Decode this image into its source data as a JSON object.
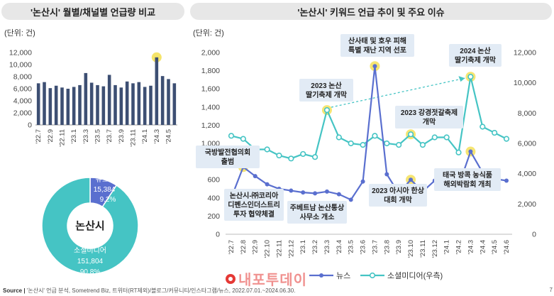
{
  "header_left": "'논산시' 월별/채널별 언급량 비교",
  "header_right": "'논산시' 키워드 언급 추이 및 주요 이슈",
  "unit_left": "(단위: 건)",
  "unit_right": "(단위: 건)",
  "source": "Source |",
  "source_text": "'논산시' 언급 분석, Sometrend Biz, 트위터(RT제외)/블로그/커뮤니티/인스타그램/뉴스, 2022.07.01.~2024.06.30.",
  "watermark": "내포투데이",
  "page_number": "7",
  "colors": {
    "bar": "#3d4f73",
    "news": "#5a6fcf",
    "social": "#45c4c4",
    "highlight": "#f4e15a",
    "annot_bg": "#e2ebf5",
    "annot_text": "#222"
  },
  "chart_data": [
    {
      "type": "bar",
      "categories": [
        "'22.7",
        "'22.8",
        "'22.9",
        "'22.10",
        "'22.11",
        "'22.12",
        "'23.1",
        "'23.2",
        "'23.3",
        "'23.4",
        "'23.5",
        "'23.6",
        "'23.7",
        "'23.8",
        "'23.9",
        "'23.10",
        "'23.11",
        "'23.12",
        "'24.1",
        "'24.2",
        "'24.3",
        "'24.4",
        "'24.5",
        "'24.6"
      ],
      "tick_labels": [
        "'22.7",
        "'22.9",
        "'22.11",
        "'23.1",
        "'23.3",
        "'23.5",
        "'23.7",
        "'23.9",
        "'23.11",
        "'24.1",
        "'24.3",
        "'24.5"
      ],
      "values": [
        6900,
        7100,
        6100,
        6500,
        6200,
        6000,
        6300,
        6600,
        8600,
        7000,
        6600,
        6400,
        8300,
        6600,
        6200,
        7200,
        6900,
        7100,
        6300,
        6500,
        11200,
        8100,
        7600,
        6900
      ],
      "highlight_index": 20,
      "ylim": [
        0,
        12000
      ],
      "yticks": [
        0,
        2000,
        4000,
        6000,
        8000,
        10000,
        12000
      ],
      "ytick_labels": [
        "0",
        "2,000",
        "4,000",
        "6,000",
        "8,000",
        "10,000",
        "12,000"
      ]
    },
    {
      "type": "pie",
      "center_label": "논산시",
      "slices": [
        {
          "name": "뉴스",
          "value": 15384,
          "value_label": "15,384",
          "percent": "9.2%",
          "color": "#5a6fcf"
        },
        {
          "name": "소셜미디어",
          "value": 151804,
          "value_label": "151,804",
          "percent": "90.8%",
          "color": "#45c4c4"
        }
      ]
    },
    {
      "type": "line",
      "x": [
        "'22.7",
        "'22.8",
        "'22.9",
        "'22.10",
        "'22.11",
        "'22.12",
        "'23.1",
        "'23.2",
        "'23.3",
        "'23.4",
        "'23.5",
        "'23.6",
        "'23.7",
        "'23.8",
        "'23.9",
        "'23.10",
        "'23.11",
        "'23.12",
        "'24.1",
        "'24.2",
        "'24.3",
        "'24.4",
        "'24.5",
        "'24.6"
      ],
      "series": [
        {
          "name": "뉴스",
          "axis": "left",
          "values": [
            400,
            740,
            640,
            550,
            500,
            480,
            460,
            450,
            470,
            440,
            380,
            580,
            1850,
            660,
            450,
            600,
            470,
            590,
            570,
            530,
            910,
            680,
            610,
            590
          ]
        },
        {
          "name": "소셜미디어(우측)",
          "axis": "right",
          "values": [
            6500,
            6300,
            5600,
            5600,
            5200,
            5000,
            5300,
            5100,
            8200,
            6400,
            6000,
            5900,
            6500,
            6000,
            5900,
            6600,
            5900,
            6400,
            6400,
            5400,
            10400,
            7100,
            6700,
            6300
          ]
        }
      ],
      "highlight_points": [
        [
          1,
          "news"
        ],
        [
          8,
          "social"
        ],
        [
          12,
          "news"
        ],
        [
          15,
          "social"
        ],
        [
          15,
          "news"
        ],
        [
          20,
          "social"
        ],
        [
          20,
          "news"
        ]
      ],
      "ylim_left": [
        0,
        2000
      ],
      "yticks_left": [
        0,
        200,
        400,
        600,
        800,
        1000,
        1200,
        1400,
        1600,
        1800,
        2000
      ],
      "ytick_labels_left": [
        "0",
        "200",
        "400",
        "600",
        "800",
        "1,000",
        "1,200",
        "1,400",
        "1,600",
        "1,800",
        "2,000"
      ],
      "ylim_right": [
        0,
        12000
      ],
      "yticks_right": [
        0,
        2000,
        4000,
        6000,
        8000,
        10000,
        12000
      ],
      "ytick_labels_right": [
        "0",
        "2,000",
        "4,000",
        "6,000",
        "8,000",
        "10,000",
        "12,000"
      ],
      "legend": [
        "뉴스",
        "소셜미디어(우측)"
      ],
      "annotations": [
        {
          "text": "국방발전협의회 출범",
          "lines": [
            "국방발전협의회",
            "출범"
          ]
        },
        {
          "text": "논산시-㈜코리아 디펜스인더스트리 투자 협약체결",
          "lines": [
            "논산시-㈜코리아",
            "디펜스인더스트리",
            "투자 협약체결"
          ]
        },
        {
          "text": "2023 논산 딸기축제 개막",
          "lines": [
            "2023 논산",
            "딸기축제 개막"
          ]
        },
        {
          "text": "주베트남 논산통상 사무소 개소",
          "lines": [
            "주베트남 논산통상",
            "사무소 개소"
          ]
        },
        {
          "text": "산사태 및 호우 피해 특별 재난 지역 선포",
          "lines": [
            "산사태 및 호우 피해",
            "특별 재난 지역 선포"
          ]
        },
        {
          "text": "2023 아시아 한상 대회 개막",
          "lines": [
            "2023 아시아 한상",
            "대회 개막"
          ]
        },
        {
          "text": "2023 강경젓갈축제 개막",
          "lines": [
            "2023 강경젓갈축제",
            "개막"
          ]
        },
        {
          "text": "2024 논산 딸기축제 개막",
          "lines": [
            "2024 논산",
            "딸기축제 개막"
          ]
        },
        {
          "text": "태국 방콕 농식품 해외박람회 개최",
          "lines": [
            "태국 방콕 농식품",
            "해외박람회 개최"
          ]
        }
      ]
    }
  ]
}
